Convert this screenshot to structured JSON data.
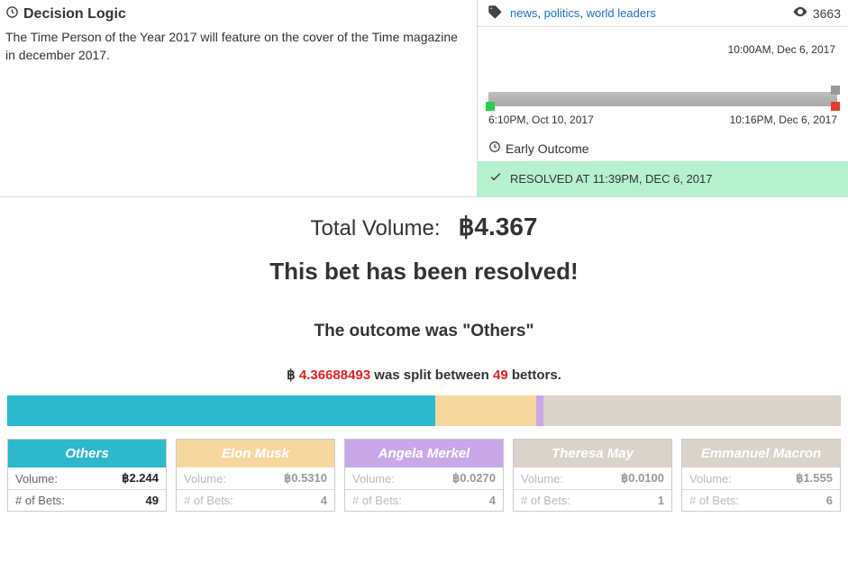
{
  "decision": {
    "title": "Decision Logic",
    "text": "The Time Person of the Year 2017 will feature on the cover of the Time magazine in december 2017."
  },
  "tags": [
    "news",
    "politics",
    "world leaders"
  ],
  "views": "3663",
  "timeline": {
    "top_label": "10:00AM, Dec 6, 2017",
    "start_label": "6:10PM, Oct 10, 2017",
    "end_label": "10:16PM, Dec 6, 2017"
  },
  "early_outcome_label": "Early Outcome",
  "resolved_text": "RESOLVED AT 11:39PM, DEC 6, 2017",
  "total_volume": {
    "label": "Total Volume:",
    "symbol": "฿",
    "amount": "4.367"
  },
  "resolved_title": "This bet has been resolved!",
  "outcome_line_prefix": "The outcome was \"",
  "outcome_name": "Others",
  "outcome_line_suffix": "\"",
  "split": {
    "symbol": "฿",
    "amount": "4.36688493",
    "mid": " was split between ",
    "bettors": "49",
    "suffix": " bettors."
  },
  "colors": {
    "others": "#2eb8cc",
    "elon": "#f7d7a0",
    "merkel": "#c9a8e8",
    "theresa": "#d9d3ca",
    "macron": "#d9d3ca"
  },
  "bar_segments": [
    {
      "color": "#2eb8cc",
      "pct": 51.3
    },
    {
      "color": "#f7d7a0",
      "pct": 12.2
    },
    {
      "color": "#c9a8e8",
      "pct": 0.8
    },
    {
      "color": "#d9d3ca",
      "pct": 35.7
    }
  ],
  "cards": [
    {
      "title": "Others",
      "header_color": "#2eb8cc",
      "volume": "2.244",
      "bets": "49",
      "winner": true
    },
    {
      "title": "Elon Musk",
      "header_color": "#f7d7a0",
      "volume": "0.5310",
      "bets": "4",
      "winner": false
    },
    {
      "title": "Angela Merkel",
      "header_color": "#c9a8e8",
      "volume": "0.0270",
      "bets": "4",
      "winner": false
    },
    {
      "title": "Theresa May",
      "header_color": "#d9d3ca",
      "volume": "0.0100",
      "bets": "1",
      "winner": false
    },
    {
      "title": "Emmanuel Macron",
      "header_color": "#d9d3ca",
      "volume": "1.555",
      "bets": "6",
      "winner": false
    }
  ],
  "card_labels": {
    "volume": "Volume:",
    "bets": "# of Bets:"
  }
}
